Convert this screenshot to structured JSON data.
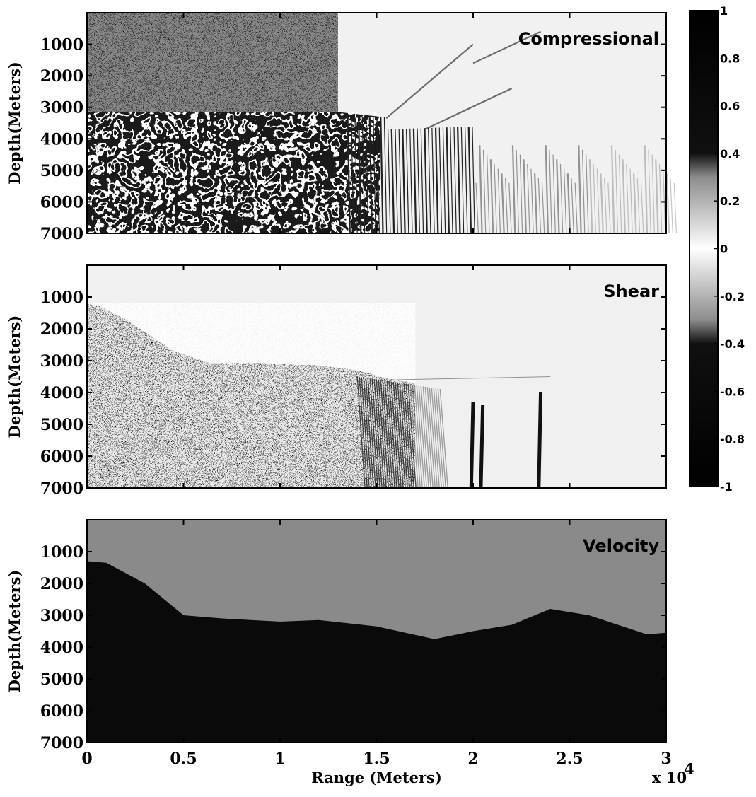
{
  "chart_data": {
    "type": "heatmap",
    "colormap": "grayscale, -1 black to 0 white to 1 black",
    "xlabel": "Range (Meters)",
    "x_exponent_label": "x 10",
    "x_exponent_power": "4",
    "xlim": [
      0,
      30000
    ],
    "x_ticks": [
      0,
      5000,
      10000,
      15000,
      20000,
      25000,
      30000
    ],
    "x_tick_labels": [
      "0",
      "0.5",
      "1",
      "1.5",
      "2",
      "2.5",
      "3"
    ],
    "colorbar": {
      "range": [
        -1,
        1
      ],
      "ticks": [
        1,
        0.8,
        0.6,
        0.4,
        0.2,
        0,
        -0.2,
        -0.4,
        -0.6,
        -0.8,
        -1
      ],
      "tick_labels": [
        "1",
        "0.8",
        "0.6",
        "0.4",
        "0.2",
        "0",
        "-0.2",
        "-0.4",
        "-0.6",
        "-0.8",
        "-1"
      ]
    },
    "panels": [
      {
        "label": "Compressional",
        "ylabel": "Depth(Meters)",
        "ylim": [
          0,
          7000
        ],
        "y_ticks": [
          1000,
          2000,
          3000,
          4000,
          5000,
          6000,
          7000
        ],
        "y_tick_labels": [
          "1000",
          "2000",
          "3000",
          "4000",
          "5000",
          "6000",
          "7000"
        ]
      },
      {
        "label": "Shear",
        "ylabel": "Depth(Meters)",
        "ylim": [
          0,
          7000
        ],
        "y_ticks": [
          1000,
          2000,
          3000,
          4000,
          5000,
          6000,
          7000
        ],
        "y_tick_labels": [
          "1000",
          "2000",
          "3000",
          "4000",
          "5000",
          "6000",
          "7000"
        ]
      },
      {
        "label": "Velocity",
        "ylabel": "Depth(Meters)",
        "ylim": [
          0,
          7000
        ],
        "y_ticks": [
          1000,
          2000,
          3000,
          4000,
          5000,
          6000,
          7000
        ],
        "y_tick_labels": [
          "1000",
          "2000",
          "3000",
          "4000",
          "5000",
          "6000",
          "7000"
        ],
        "seafloor_depth_profile": {
          "x": [
            0,
            1000,
            3000,
            5000,
            7000,
            10000,
            12000,
            15000,
            18000,
            20000,
            22000,
            24000,
            26000,
            28000,
            29000,
            30000
          ],
          "y": [
            1300,
            1350,
            2000,
            3000,
            3100,
            3200,
            3150,
            3350,
            3750,
            3500,
            3300,
            2800,
            3000,
            3400,
            3600,
            3550
          ]
        }
      }
    ]
  }
}
